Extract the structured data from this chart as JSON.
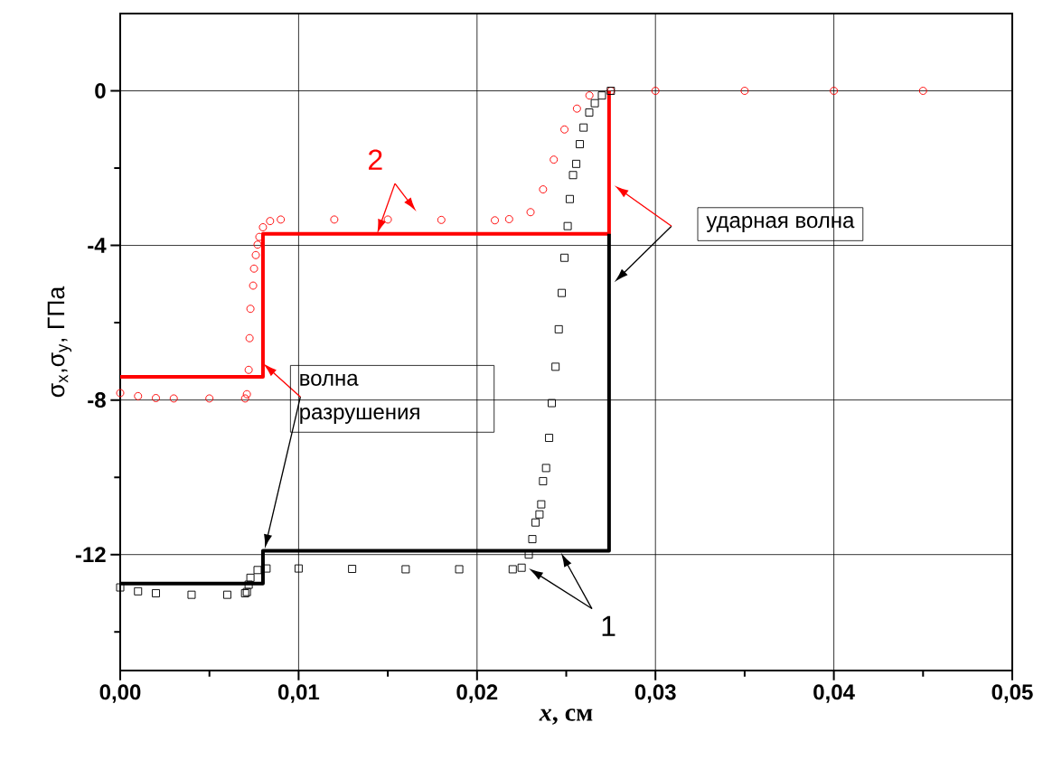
{
  "chart_data": {
    "type": "line",
    "xlabel": "*x*, см",
    "ylabel": "σ$_{x}$,σ$_{y}$, ГПа",
    "xlim": [
      0,
      0.05
    ],
    "ylim": [
      -15,
      2
    ],
    "xticks": [
      {
        "value": 0,
        "label": "0,00"
      },
      {
        "value": 0.005,
        "label": null
      },
      {
        "value": 0.01,
        "label": "0,01"
      },
      {
        "value": 0.015,
        "label": null
      },
      {
        "value": 0.02,
        "label": "0,02"
      },
      {
        "value": 0.025,
        "label": null
      },
      {
        "value": 0.03,
        "label": "0,03"
      },
      {
        "value": 0.035,
        "label": null
      },
      {
        "value": 0.04,
        "label": "0,04"
      },
      {
        "value": 0.045,
        "label": null
      },
      {
        "value": 0.05,
        "label": "0,05"
      }
    ],
    "yticks": [
      {
        "value": -14,
        "label": null
      },
      -12,
      {
        "value": -10,
        "label": null
      },
      -8,
      {
        "value": -6,
        "label": null
      },
      -4,
      {
        "value": -2,
        "label": null
      },
      0
    ],
    "grid": true,
    "series": [
      {
        "type": "scatter",
        "marker": "circle",
        "color": "#ff0000",
        "x": [
          0,
          0.001,
          0.002,
          0.003,
          0.005,
          0.007,
          0.0071,
          0.0072,
          0.00725,
          0.0073,
          0.00745,
          0.0075,
          0.0076,
          0.0077,
          0.0078,
          0.008,
          0.0084,
          0.009,
          0.012,
          0.015,
          0.018,
          0.021,
          0.0218,
          0.023,
          0.0237,
          0.0243,
          0.0249,
          0.0256,
          0.0263,
          0.0275,
          0.03,
          0.035,
          0.04,
          0.045
        ],
        "values": [
          -7.82,
          -7.9,
          -7.95,
          -7.96,
          -7.96,
          -7.96,
          -7.85,
          -7.22,
          -6.4,
          -5.64,
          -5.04,
          -4.6,
          -4.25,
          -3.98,
          -3.78,
          -3.53,
          -3.37,
          -3.33,
          -3.33,
          -3.33,
          -3.34,
          -3.35,
          -3.32,
          -3.14,
          -2.55,
          -1.78,
          -1.0,
          -0.46,
          -0.12,
          0,
          0,
          0,
          0,
          0
        ]
      },
      {
        "type": "scatter",
        "marker": "square",
        "color": "#000000",
        "x": [
          0,
          0.001,
          0.002,
          0.004,
          0.006,
          0.007,
          0.0071,
          0.0072,
          0.0073,
          0.0077,
          0.0082,
          0.01,
          0.013,
          0.016,
          0.019,
          0.022,
          0.0225,
          0.0229,
          0.0231,
          0.02328,
          0.0235,
          0.0236,
          0.0237,
          0.02387,
          0.02404,
          0.02419,
          0.0244,
          0.02458,
          0.02475,
          0.0249,
          0.02508,
          0.0252,
          0.02538,
          0.02556,
          0.02576,
          0.02597,
          0.02629,
          0.0266,
          0.027,
          0.0275
        ],
        "values": [
          -12.85,
          -12.95,
          -13.0,
          -13.04,
          -13.04,
          -13.0,
          -12.97,
          -12.78,
          -12.6,
          -12.4,
          -12.36,
          -12.36,
          -12.37,
          -12.38,
          -12.38,
          -12.38,
          -12.34,
          -12.0,
          -11.6,
          -11.17,
          -10.96,
          -10.7,
          -10.1,
          -9.76,
          -8.98,
          -8.08,
          -7.14,
          -6.17,
          -5.23,
          -4.32,
          -3.5,
          -2.8,
          -2.18,
          -1.89,
          -1.38,
          -0.95,
          -0.56,
          -0.32,
          -0.12,
          0
        ]
      },
      {
        "marker": "none",
        "color": "#ff0000",
        "x": [
          0,
          0.008,
          0.008,
          0.0274,
          0.0274
        ],
        "values": [
          -7.4,
          -7.4,
          -3.7,
          -3.7,
          0
        ]
      },
      {
        "marker": "none",
        "color": "#000000",
        "x": [
          0,
          0.008,
          0.008,
          0.0274,
          0.0274
        ],
        "values": [
          -12.75,
          -12.75,
          -11.9,
          -11.9,
          -3.7
        ]
      }
    ],
    "annotations": [
      {
        "text": "2",
        "x": 0.0144,
        "y": -3.7
      },
      "ударная волна",
      {
        "text": "волна разрушения",
        "x": 0.008,
        "y": -7.05
      },
      "1"
    ]
  }
}
